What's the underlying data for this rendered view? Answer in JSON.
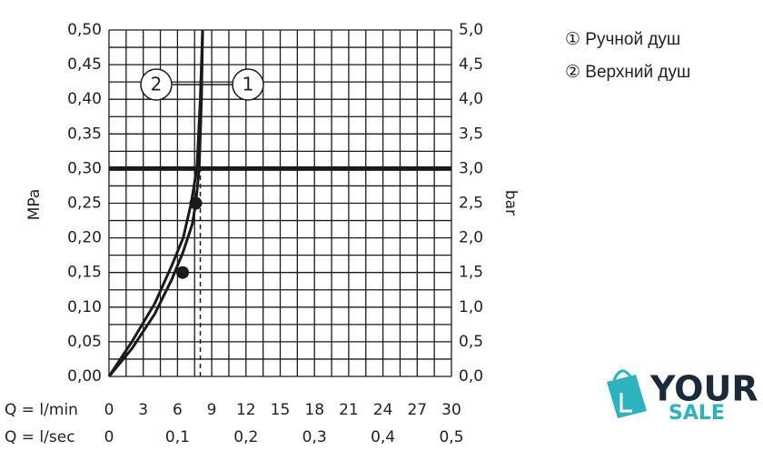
{
  "chart_data": {
    "type": "line",
    "y_label": "MPa",
    "y2_label": "bar",
    "x_label": "Q = l/min",
    "x2_label": "Q = l/sec",
    "xlim": [
      0,
      30
    ],
    "xticks": [
      0,
      3,
      6,
      9,
      12,
      15,
      18,
      21,
      24,
      27,
      30
    ],
    "x2lim": [
      0,
      0.5
    ],
    "x2ticks": [
      0,
      {
        "value": 0.1,
        "label": "0,1"
      },
      {
        "value": 0.2,
        "label": "0,2"
      },
      {
        "value": 0.3,
        "label": "0,3"
      },
      {
        "value": 0.4,
        "label": "0,4"
      },
      {
        "value": 0.5,
        "label": "0,5"
      }
    ],
    "ylim": [
      0,
      0.5
    ],
    "yticks": [
      {
        "value": 0,
        "label": "0,00"
      },
      {
        "value": 0.05,
        "label": "0,05"
      },
      {
        "value": 0.1,
        "label": "0,10"
      },
      {
        "value": 0.15,
        "label": "0,15"
      },
      {
        "value": 0.2,
        "label": "0,20"
      },
      {
        "value": 0.25,
        "label": "0,25"
      },
      {
        "value": 0.3,
        "label": "0,30"
      },
      {
        "value": 0.35,
        "label": "0,35"
      },
      {
        "value": 0.4,
        "label": "0,40"
      },
      {
        "value": 0.45,
        "label": "0,45"
      },
      {
        "value": 0.5,
        "label": "0,50"
      }
    ],
    "y2lim": [
      0,
      5
    ],
    "y2ticks": [
      {
        "value": 0,
        "label": "0,0"
      },
      {
        "value": 0.5,
        "label": "0,5"
      },
      {
        "value": 1,
        "label": "1,0"
      },
      {
        "value": 1.5,
        "label": "1,5"
      },
      {
        "value": 2,
        "label": "2,0"
      },
      {
        "value": 2.5,
        "label": "2,5"
      },
      {
        "value": 3,
        "label": "3,0"
      },
      {
        "value": 3.5,
        "label": "3,5"
      },
      {
        "value": 4,
        "label": "4,0"
      },
      {
        "value": 4.5,
        "label": "4,5"
      },
      {
        "value": 5,
        "label": "5,0"
      }
    ],
    "xgrid": [
      0,
      1.5,
      3,
      4.5,
      6,
      7.5,
      9,
      10.5,
      12,
      13.5,
      15,
      16.5,
      18,
      19.5,
      21,
      22.5,
      24,
      25.5,
      27,
      28.5,
      30
    ],
    "ygrid": [
      0,
      0.025,
      0.05,
      0.075,
      0.1,
      0.125,
      0.15,
      0.175,
      0.2,
      0.225,
      0.25,
      0.275,
      0.3,
      0.325,
      0.35,
      0.375,
      0.4,
      0.425,
      0.45,
      0.475,
      0.5
    ],
    "reference_line": 0.3,
    "dashed_line": {
      "x": 8,
      "values": [
        0,
        0.3
      ]
    },
    "color": "#1a1a1a",
    "series": [
      {
        "name": "① Ручной душ",
        "callout": "1",
        "x": [
          0,
          2,
          4,
          5.5,
          6.5,
          7.3,
          7.6,
          7.9,
          8.1,
          8.2
        ],
        "values": [
          0,
          0.04,
          0.09,
          0.14,
          0.18,
          0.22,
          0.25,
          0.3,
          0.4,
          0.5
        ]
      },
      {
        "name": "② Верхний душ",
        "callout": "2",
        "x": [
          0,
          2,
          4,
          5.5,
          6.5,
          7.2,
          7.7,
          8,
          8.2
        ],
        "values": [
          0,
          0.05,
          0.105,
          0.16,
          0.2,
          0.25,
          0.3,
          0.4,
          0.5
        ]
      }
    ],
    "points": {
      "x": [
        6.45,
        7.6
      ],
      "values": [
        0.15,
        0.25
      ]
    },
    "watermark": [
      "YOUR",
      "SALE"
    ]
  }
}
